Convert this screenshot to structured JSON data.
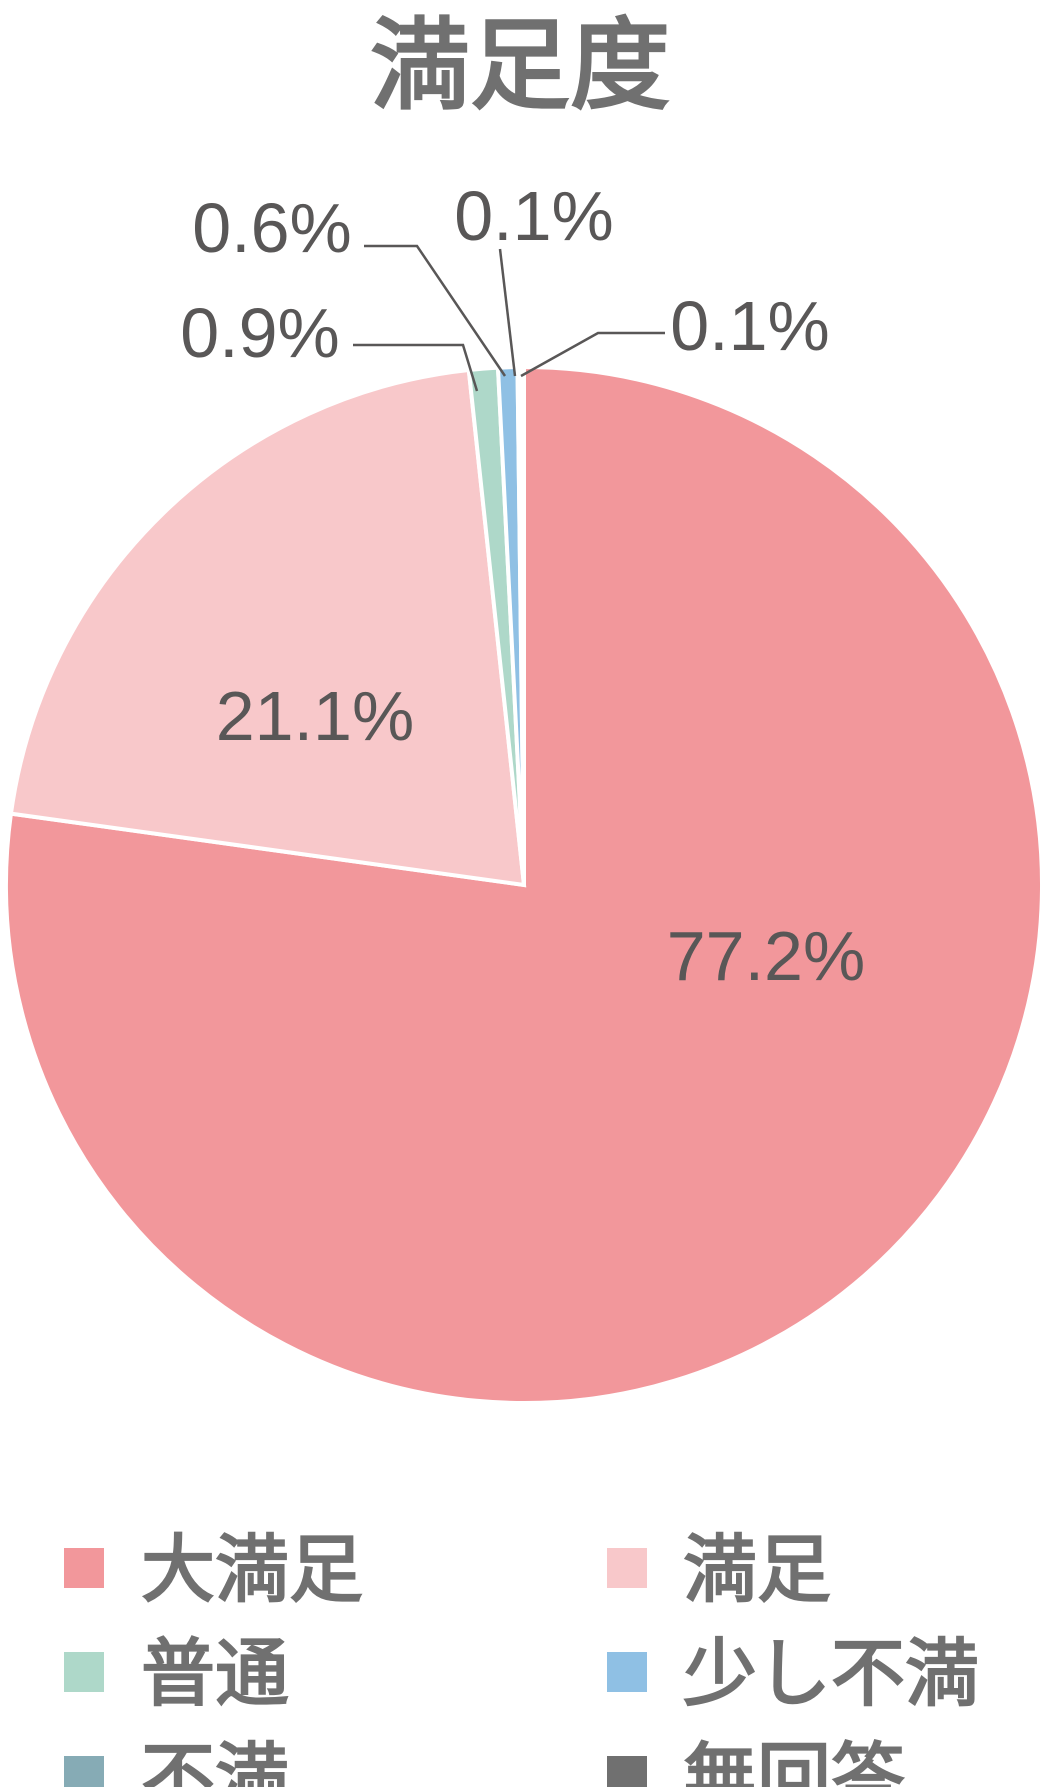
{
  "chart_data": {
    "type": "pie",
    "title": "満足度",
    "start": "top",
    "direction": "clockwise",
    "legend_position": "bottom",
    "slices": [
      {
        "name": "大満足",
        "value": 77.2,
        "label": "77.2%",
        "color": "#f2979b"
      },
      {
        "name": "満足",
        "value": 21.1,
        "label": "21.1%",
        "color": "#f8c8ca"
      },
      {
        "name": "普通",
        "value": 0.9,
        "label": "0.9%",
        "color": "#aed8c9"
      },
      {
        "name": "少し不満",
        "value": 0.6,
        "label": "0.6%",
        "color": "#8fc0e4"
      },
      {
        "name": "不満",
        "value": 0.1,
        "label": "0.1%",
        "color": "#86abb5"
      },
      {
        "name": "無回答",
        "value": 0.1,
        "label": "0.1%",
        "color": "#707070"
      }
    ]
  }
}
